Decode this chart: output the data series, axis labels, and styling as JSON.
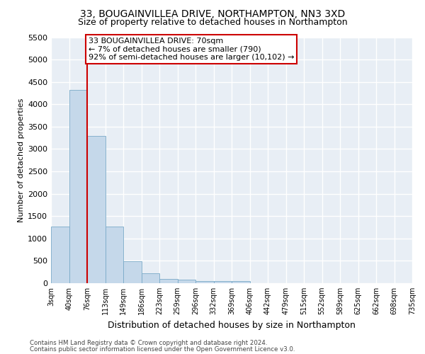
{
  "title": "33, BOUGAINVILLEA DRIVE, NORTHAMPTON, NN3 3XD",
  "subtitle": "Size of property relative to detached houses in Northampton",
  "xlabel": "Distribution of detached houses by size in Northampton",
  "ylabel": "Number of detached properties",
  "bin_labels": [
    "3sqm",
    "40sqm",
    "76sqm",
    "113sqm",
    "149sqm",
    "186sqm",
    "223sqm",
    "259sqm",
    "296sqm",
    "332sqm",
    "369sqm",
    "406sqm",
    "442sqm",
    "479sqm",
    "515sqm",
    "552sqm",
    "589sqm",
    "625sqm",
    "662sqm",
    "698sqm",
    "735sqm"
  ],
  "bar_heights": [
    1270,
    4320,
    3290,
    1270,
    490,
    215,
    90,
    75,
    55,
    40,
    55,
    0,
    0,
    0,
    0,
    0,
    0,
    0,
    0,
    0
  ],
  "bar_color": "#c5d8ea",
  "bar_edge_color": "#7aaac8",
  "red_line_x_label": "76sqm",
  "ylim": [
    0,
    5500
  ],
  "yticks": [
    0,
    500,
    1000,
    1500,
    2000,
    2500,
    3000,
    3500,
    4000,
    4500,
    5000,
    5500
  ],
  "annotation_line1": "33 BOUGAINVILLEA DRIVE: 70sqm",
  "annotation_line2": "← 7% of detached houses are smaller (790)",
  "annotation_line3": "92% of semi-detached houses are larger (10,102) →",
  "annotation_box_color": "#ffffff",
  "annotation_box_edge": "#cc0000",
  "red_line_color": "#cc0000",
  "footnote1": "Contains HM Land Registry data © Crown copyright and database right 2024.",
  "footnote2": "Contains public sector information licensed under the Open Government Licence v3.0.",
  "fig_bg_color": "#ffffff",
  "plot_bg_color": "#e8eef5",
  "grid_color": "#ffffff",
  "title_fontsize": 10,
  "subtitle_fontsize": 9,
  "ylabel_fontsize": 8,
  "xlabel_fontsize": 9
}
